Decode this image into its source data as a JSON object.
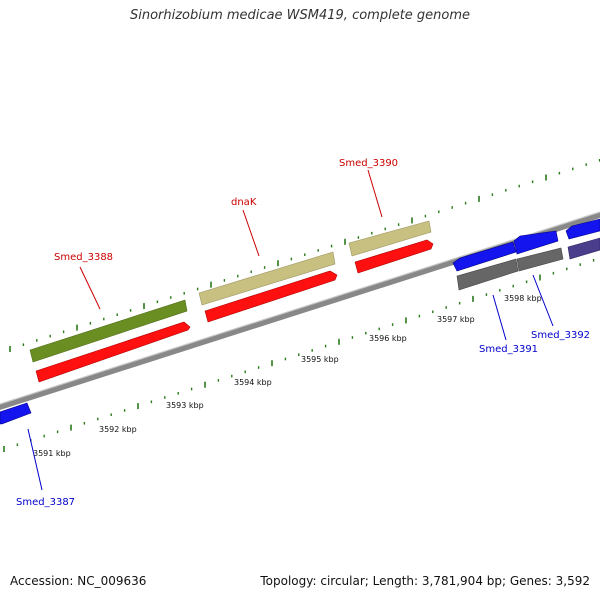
{
  "title": "Sinorhizobium medicae WSM419, complete genome",
  "footer": {
    "accession": "Accession: NC_009636",
    "summary": "Topology: circular; Length: 3,781,904 bp; Genes: 3,592"
  },
  "colors": {
    "backbone": "#888888",
    "tick": "#2a7a1a",
    "cds_red": "#ff1010",
    "cds_blue": "#1414ee",
    "gene_olive": "#6b8e23",
    "gene_khaki": "#c8c080",
    "gene_gray": "#666666",
    "gene_purple": "#4a3d8c",
    "label_forward": "#cc0000",
    "label_reverse": "#0000cc"
  },
  "kbp_labels": [
    "3591 kbp",
    "3592 kbp",
    "3593 kbp",
    "3594 kbp",
    "3595 kbp",
    "3596 kbp",
    "3597 kbp",
    "3598 kbp"
  ],
  "gene_labels": {
    "smed_3388": "Smed_3388",
    "dnak": "dnaK",
    "smed_3390": "Smed_3390",
    "smed_3387": "Smed_3387",
    "smed_3391": "Smed_3391",
    "smed_3392": "Smed_3392"
  }
}
